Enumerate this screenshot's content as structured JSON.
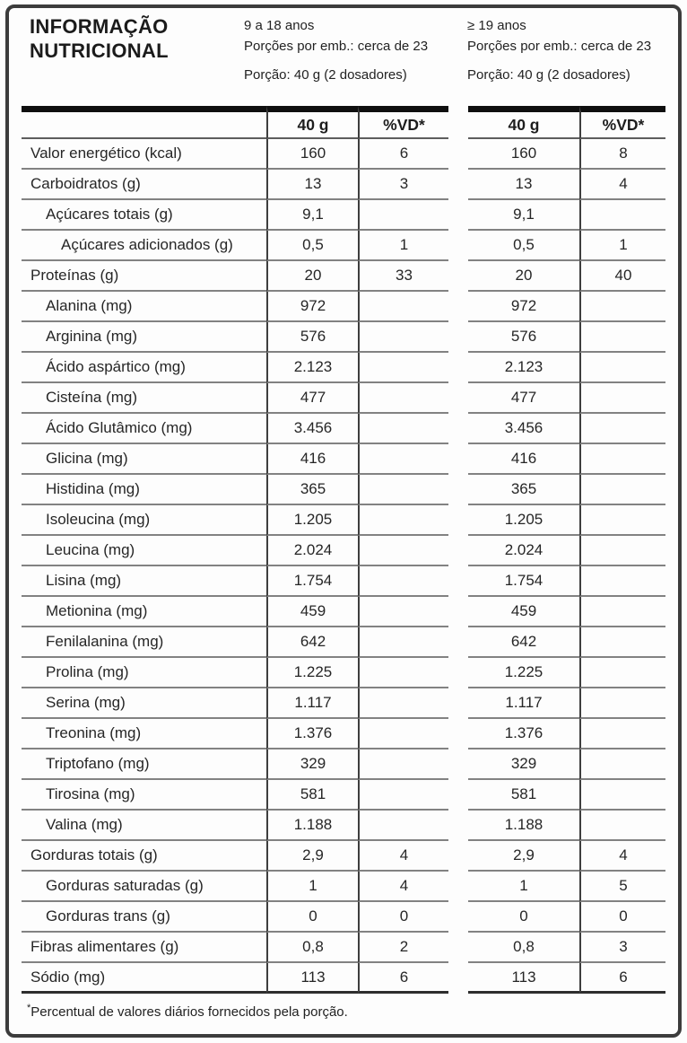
{
  "page": {
    "title": "INFORMAÇÃO\nNUTRICIONAL"
  },
  "groups": [
    {
      "age_range": "9 a 18 anos",
      "servings_per_pack": "Porções por emb.: cerca de 23",
      "serving_size": "Porção: 40 g (2 dosadores)"
    },
    {
      "age_range": "≥ 19 anos",
      "servings_per_pack": "Porções por emb.: cerca de 23",
      "serving_size": "Porção: 40 g (2 dosadores)"
    }
  ],
  "table": {
    "column_headers": {
      "amount": "40 g",
      "dv": "%VD*"
    },
    "rows": [
      {
        "label": "Valor energético (kcal)",
        "indent": 0,
        "amount_9a18": "160",
        "dv_9a18": "6",
        "amount_19": "160",
        "dv_19": "8"
      },
      {
        "label": "Carboidratos (g)",
        "indent": 0,
        "amount_9a18": "13",
        "dv_9a18": "3",
        "amount_19": "13",
        "dv_19": "4"
      },
      {
        "label": "Açúcares totais (g)",
        "indent": 1,
        "amount_9a18": "9,1",
        "dv_9a18": "",
        "amount_19": "9,1",
        "dv_19": ""
      },
      {
        "label": "Açúcares adicionados (g)",
        "indent": 2,
        "amount_9a18": "0,5",
        "dv_9a18": "1",
        "amount_19": "0,5",
        "dv_19": "1"
      },
      {
        "label": "Proteínas (g)",
        "indent": 0,
        "amount_9a18": "20",
        "dv_9a18": "33",
        "amount_19": "20",
        "dv_19": "40"
      },
      {
        "label": "Alanina (mg)",
        "indent": 1,
        "amount_9a18": "972",
        "dv_9a18": "",
        "amount_19": "972",
        "dv_19": ""
      },
      {
        "label": "Arginina (mg)",
        "indent": 1,
        "amount_9a18": "576",
        "dv_9a18": "",
        "amount_19": "576",
        "dv_19": ""
      },
      {
        "label": "Ácido aspártico (mg)",
        "indent": 1,
        "amount_9a18": "2.123",
        "dv_9a18": "",
        "amount_19": "2.123",
        "dv_19": ""
      },
      {
        "label": "Cisteína (mg)",
        "indent": 1,
        "amount_9a18": "477",
        "dv_9a18": "",
        "amount_19": "477",
        "dv_19": ""
      },
      {
        "label": "Ácido Glutâmico (mg)",
        "indent": 1,
        "amount_9a18": "3.456",
        "dv_9a18": "",
        "amount_19": "3.456",
        "dv_19": ""
      },
      {
        "label": "Glicina (mg)",
        "indent": 1,
        "amount_9a18": "416",
        "dv_9a18": "",
        "amount_19": "416",
        "dv_19": ""
      },
      {
        "label": "Histidina (mg)",
        "indent": 1,
        "amount_9a18": "365",
        "dv_9a18": "",
        "amount_19": "365",
        "dv_19": ""
      },
      {
        "label": "Isoleucina (mg)",
        "indent": 1,
        "amount_9a18": "1.205",
        "dv_9a18": "",
        "amount_19": "1.205",
        "dv_19": ""
      },
      {
        "label": "Leucina (mg)",
        "indent": 1,
        "amount_9a18": "2.024",
        "dv_9a18": "",
        "amount_19": "2.024",
        "dv_19": ""
      },
      {
        "label": "Lisina (mg)",
        "indent": 1,
        "amount_9a18": "1.754",
        "dv_9a18": "",
        "amount_19": "1.754",
        "dv_19": ""
      },
      {
        "label": "Metionina (mg)",
        "indent": 1,
        "amount_9a18": "459",
        "dv_9a18": "",
        "amount_19": "459",
        "dv_19": ""
      },
      {
        "label": "Fenilalanina (mg)",
        "indent": 1,
        "amount_9a18": "642",
        "dv_9a18": "",
        "amount_19": "642",
        "dv_19": ""
      },
      {
        "label": "Prolina (mg)",
        "indent": 1,
        "amount_9a18": "1.225",
        "dv_9a18": "",
        "amount_19": "1.225",
        "dv_19": ""
      },
      {
        "label": "Serina (mg)",
        "indent": 1,
        "amount_9a18": "1.117",
        "dv_9a18": "",
        "amount_19": "1.117",
        "dv_19": ""
      },
      {
        "label": "Treonina (mg)",
        "indent": 1,
        "amount_9a18": "1.376",
        "dv_9a18": "",
        "amount_19": "1.376",
        "dv_19": ""
      },
      {
        "label": "Triptofano (mg)",
        "indent": 1,
        "amount_9a18": "329",
        "dv_9a18": "",
        "amount_19": "329",
        "dv_19": ""
      },
      {
        "label": "Tirosina (mg)",
        "indent": 1,
        "amount_9a18": "581",
        "dv_9a18": "",
        "amount_19": "581",
        "dv_19": ""
      },
      {
        "label": "Valina (mg)",
        "indent": 1,
        "amount_9a18": "1.188",
        "dv_9a18": "",
        "amount_19": "1.188",
        "dv_19": ""
      },
      {
        "label": "Gorduras totais (g)",
        "indent": 0,
        "amount_9a18": "2,9",
        "dv_9a18": "4",
        "amount_19": "2,9",
        "dv_19": "4"
      },
      {
        "label": "Gorduras saturadas (g)",
        "indent": 1,
        "amount_9a18": "1",
        "dv_9a18": "4",
        "amount_19": "1",
        "dv_19": "5"
      },
      {
        "label": "Gorduras trans (g)",
        "indent": 1,
        "amount_9a18": "0",
        "dv_9a18": "0",
        "amount_19": "0",
        "dv_19": "0"
      },
      {
        "label": "Fibras alimentares (g)",
        "indent": 0,
        "amount_9a18": "0,8",
        "dv_9a18": "2",
        "amount_19": "0,8",
        "dv_19": "3"
      },
      {
        "label": "Sódio (mg)",
        "indent": 0,
        "amount_9a18": "113",
        "dv_9a18": "6",
        "amount_19": "113",
        "dv_19": "6"
      }
    ]
  },
  "footnote": {
    "marker": "*",
    "text": "Percentual de valores diários fornecidos pela porção."
  }
}
